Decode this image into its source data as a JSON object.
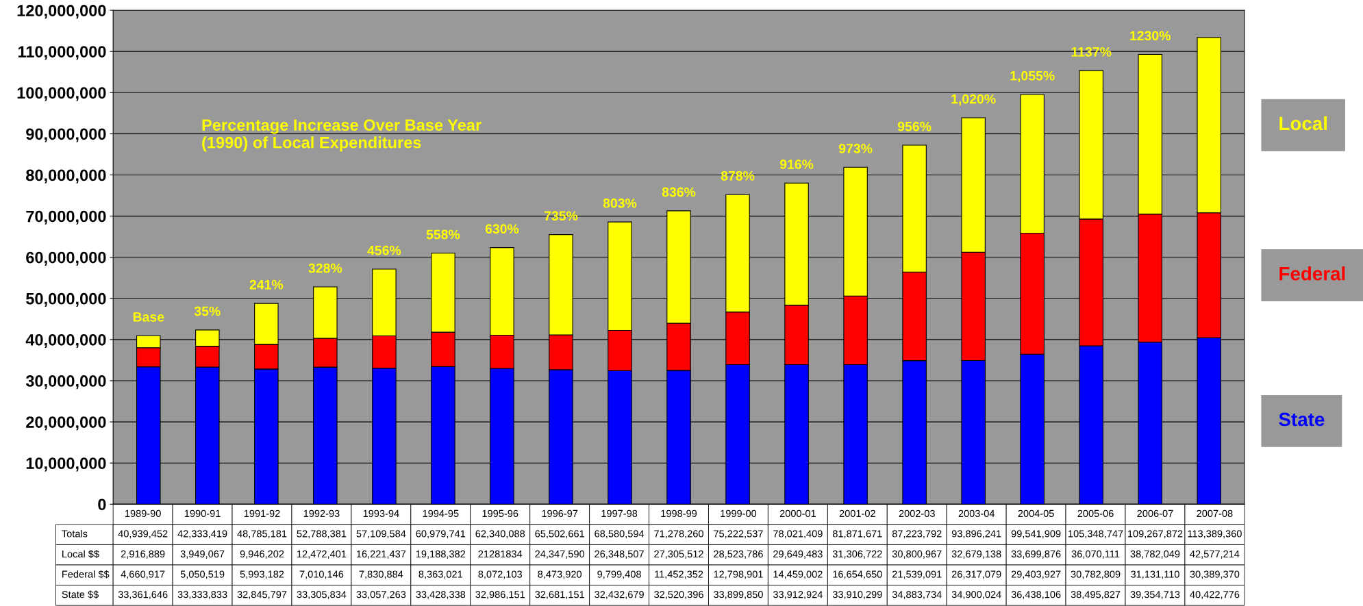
{
  "chart_data": {
    "type": "bar",
    "stacked": true,
    "title": "Percentage Increase Over Base Year (1990) of Local Expenditures",
    "categories": [
      "1989-90",
      "1990-91",
      "1991-92",
      "1992-93",
      "1993-94",
      "1994-95",
      "1995-96",
      "1996-97",
      "1997-98",
      "1998-99",
      "1999-00",
      "2000-01",
      "2001-02",
      "2002-03",
      "2003-04",
      "2004-05",
      "2005-06",
      "2006-07",
      "2007-08"
    ],
    "series": [
      {
        "name": "State",
        "color": "#0000ff",
        "values": [
          33361646,
          33333833,
          32845797,
          33305834,
          33057263,
          33428338,
          32986151,
          32681151,
          32432679,
          32520396,
          33899850,
          33912924,
          33910299,
          34883734,
          34900024,
          36438106,
          38495827,
          39354713,
          40422776
        ],
        "value_labels": [
          "33,361,646",
          "33,333,833",
          "32,845,797",
          "33,305,834",
          "33,057,263",
          "33,428,338",
          "32,986,151",
          "32,681,151",
          "32,432,679",
          "32,520,396",
          "33,899,850",
          "33,912,924",
          "33,910,299",
          "34,883,734",
          "34,900,024",
          "36,438,106",
          "38,495,827",
          "39,354,713",
          "40,422,776"
        ]
      },
      {
        "name": "Federal",
        "color": "#ff0000",
        "values": [
          4660917,
          5050519,
          5993182,
          7010146,
          7830884,
          8363021,
          8072103,
          8473920,
          9799408,
          11452352,
          12798901,
          14459002,
          16654650,
          21539091,
          26317079,
          29403927,
          30782809,
          31131110,
          30389370
        ],
        "value_labels": [
          "4,660,917",
          "5,050,519",
          "5,993,182",
          "7,010,146",
          "7,830,884",
          "8,363,021",
          "8,072,103",
          "8,473,920",
          "9,799,408",
          "11,452,352",
          "12,798,901",
          "14,459,002",
          "16,654,650",
          "21,539,091",
          "26,317,079",
          "29,403,927",
          "30,782,809",
          "31,131,110",
          "30,389,370"
        ]
      },
      {
        "name": "Local",
        "color": "#ffff00",
        "values": [
          2916889,
          3949067,
          9946202,
          12472401,
          16221437,
          19188382,
          21281834,
          24347590,
          26348507,
          27305512,
          28523786,
          29649483,
          31306722,
          30800967,
          32679138,
          33699876,
          36070111,
          38782049,
          42577214
        ],
        "value_labels": [
          "2,916,889",
          "3,949,067",
          "9,946,202",
          "12,472,401",
          "16,221,437",
          "19,188,382",
          "21281834",
          "24,347,590",
          "26,348,507",
          "27,305,512",
          "28,523,786",
          "29,649,483",
          "31,306,722",
          "30,800,967",
          "32,679,138",
          "33,699,876",
          "36,070,111",
          "38,782,049",
          "42,577,214"
        ]
      }
    ],
    "totals": [
      "40,939,452",
      "42,333,419",
      "48,785,181",
      "52,788,381",
      "57,109,584",
      "60,979,741",
      "62,340,088",
      "65,502,661",
      "68,580,594",
      "71,278,260",
      "75,222,537",
      "78,021,409",
      "81,871,671",
      "87,223,792",
      "93,896,241",
      "99,541,909",
      "105,348,747",
      "109,267,872",
      "113,389,360"
    ],
    "ylim": [
      0,
      120000000
    ],
    "yticks": [
      {
        "value": 0,
        "label": "0"
      },
      {
        "value": 10000000,
        "label": "10,000,000"
      },
      {
        "value": 20000000,
        "label": "20,000,000"
      },
      {
        "value": 30000000,
        "label": "30,000,000"
      },
      {
        "value": 40000000,
        "label": "40,000,000"
      },
      {
        "value": 50000000,
        "label": "50,000,000"
      },
      {
        "value": 60000000,
        "label": "60,000,000"
      },
      {
        "value": 70000000,
        "label": "70,000,000"
      },
      {
        "value": 80000000,
        "label": "80,000,000"
      },
      {
        "value": 90000000,
        "label": "90,000,000"
      },
      {
        "value": 100000000,
        "label": "100,000,000"
      },
      {
        "value": 110000000,
        "label": "110,000,000"
      },
      {
        "value": 120000000,
        "label": "120,000,000"
      }
    ],
    "grid": "y",
    "legend": "right",
    "annotations": [
      {
        "text": "Base",
        "x": "1989-90",
        "y": 40939452
      },
      {
        "text": "35%",
        "x": "1990-91",
        "y": 42333419
      },
      {
        "text": "241%",
        "x": "1991-92",
        "y": 48785181
      },
      {
        "text": "328%",
        "x": "1992-93",
        "y": 52788381
      },
      {
        "text": "456%",
        "x": "1993-94",
        "y": 57109584
      },
      {
        "text": "558%",
        "x": "1994-95",
        "y": 60979741
      },
      {
        "text": "630%",
        "x": "1995-96",
        "y": 62340088
      },
      {
        "text": "735%",
        "x": "1996-97",
        "y": 65502661
      },
      {
        "text": "803%",
        "x": "1997-98",
        "y": 68580594
      },
      {
        "text": "836%",
        "x": "1998-99",
        "y": 71278260
      },
      {
        "text": "878%",
        "x": "1999-00",
        "y": 75222537
      },
      {
        "text": "916%",
        "x": "2000-01",
        "y": 78021409
      },
      {
        "text": "973%",
        "x": "2001-02",
        "y": 81871671
      },
      {
        "text": "956%",
        "x": "2002-03",
        "y": 87223792
      },
      {
        "text": "1,020%",
        "x": "2003-04",
        "y": 93896241
      },
      {
        "text": "1,055%",
        "x": "2004-05",
        "y": 99541909
      },
      {
        "text": "1137%",
        "x": "2005-06",
        "y": 105348747
      },
      {
        "text": "1230%",
        "x": "2006-07",
        "y": 109267872
      },
      "Totals",
      "Local $$",
      "Federal $$",
      "State $$"
    ]
  }
}
